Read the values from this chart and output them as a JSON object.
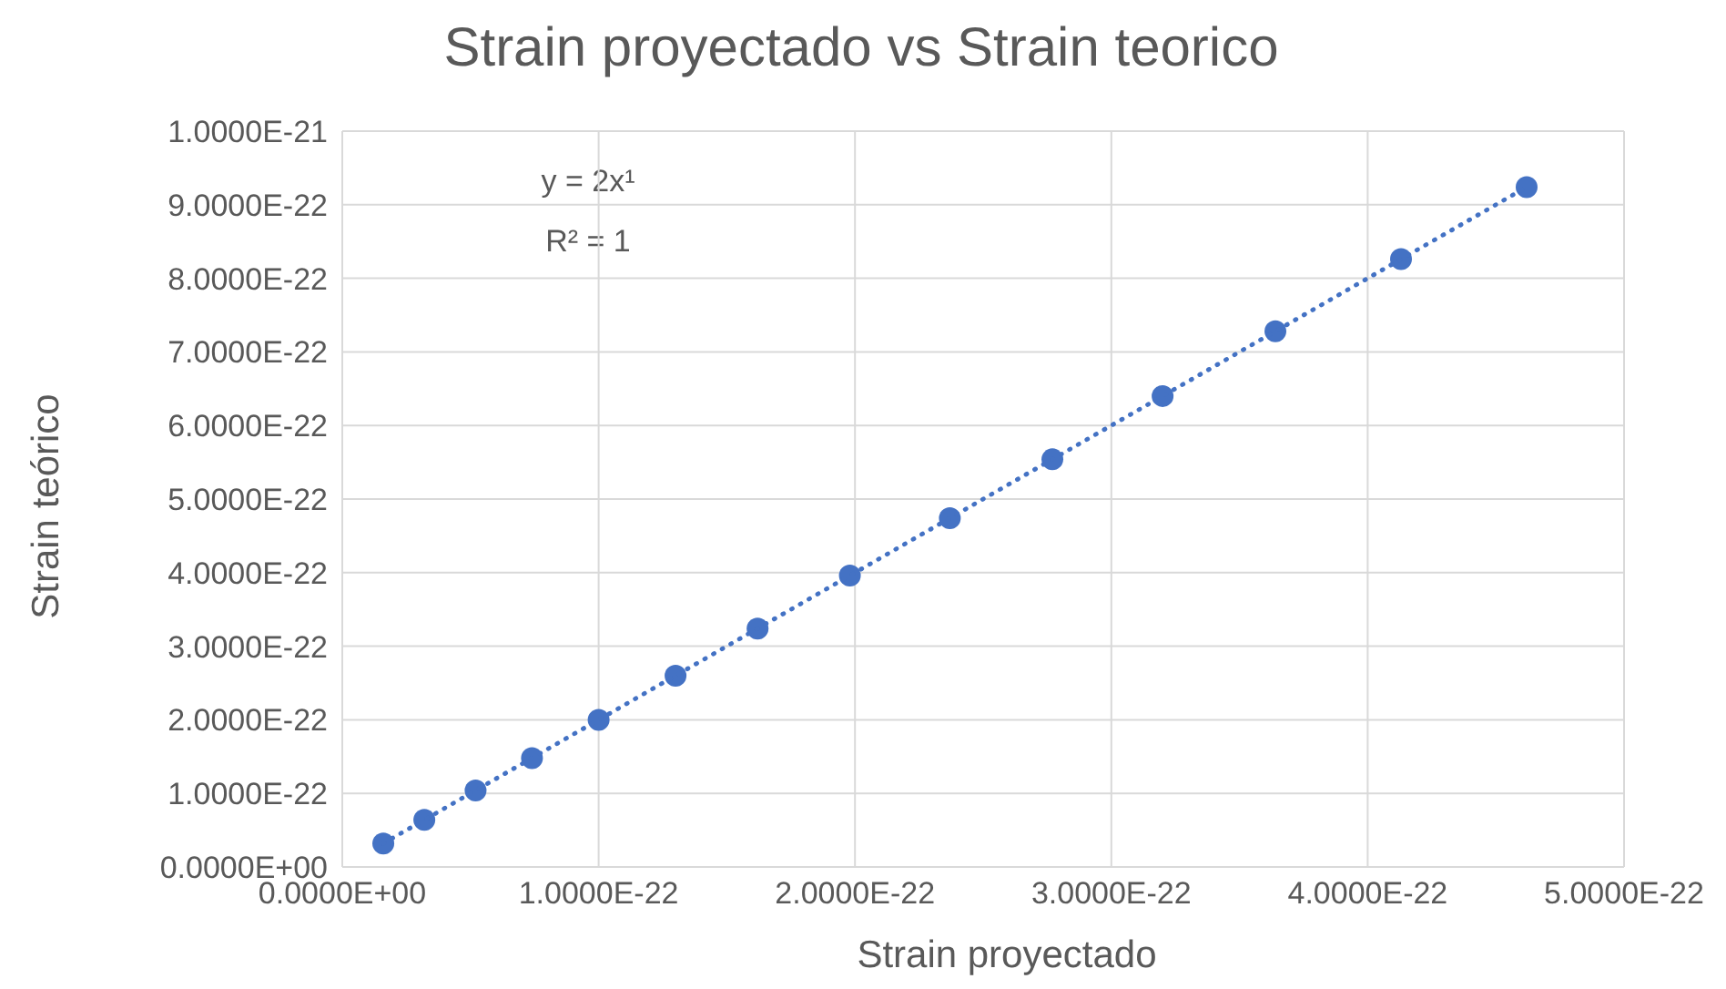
{
  "chart_data": {
    "type": "scatter",
    "title": "Strain proyectado vs Strain teorico",
    "xlabel": "Strain proyectado",
    "ylabel": "Strain teórico",
    "series": [
      {
        "color": "#4472c4",
        "marker": "circle",
        "x": [
          1.6e-23,
          3.2e-23,
          5.2e-23,
          7.4e-23,
          1e-22,
          1.3e-22,
          1.62e-22,
          1.98e-22,
          2.37e-22,
          2.77e-22,
          3.2e-22,
          3.64e-22,
          4.13e-22,
          4.62e-22
        ],
        "values": [
          3.2e-23,
          6.4e-23,
          1.04e-22,
          1.48e-22,
          2e-22,
          2.6e-22,
          3.24e-22,
          3.96e-22,
          4.74e-22,
          5.54e-22,
          6.4e-22,
          7.28e-22,
          8.26e-22,
          9.24e-22
        ]
      },
      {
        "type": "line",
        "color": "#4472c4",
        "line_style": "dotted",
        "marker": "none",
        "x": [
          1.6e-23,
          4.62e-22
        ],
        "values": [
          3.2e-23,
          9.24e-22
        ]
      }
    ],
    "xlim": [
      0,
      5e-22
    ],
    "xticks": [
      {
        "value": 0,
        "label": "0.0000E+00"
      },
      {
        "value": 1e-22,
        "label": "1.0000E-22"
      },
      {
        "value": 2e-22,
        "label": "2.0000E-22"
      },
      {
        "value": 3e-22,
        "label": "3.0000E-22"
      },
      {
        "value": 4e-22,
        "label": "4.0000E-22"
      },
      {
        "value": 5e-22,
        "label": "5.0000E-22"
      }
    ],
    "ylim": [
      0,
      1e-21
    ],
    "yticks": [
      {
        "value": 0,
        "label": "0.0000E+00"
      },
      {
        "value": 1e-22,
        "label": "1.0000E-22"
      },
      {
        "value": 2e-22,
        "label": "2.0000E-22"
      },
      {
        "value": 3e-22,
        "label": "3.0000E-22"
      },
      {
        "value": 4e-22,
        "label": "4.0000E-22"
      },
      {
        "value": 5e-22,
        "label": "5.0000E-22"
      },
      {
        "value": 6e-22,
        "label": "6.0000E-22"
      },
      {
        "value": 7e-22,
        "label": "7.0000E-22"
      },
      {
        "value": 8e-22,
        "label": "8.0000E-22"
      },
      {
        "value": 9e-22,
        "label": "9.0000E-22"
      },
      {
        "value": 1e-21,
        "label": "1.0000E-21"
      }
    ],
    "grid": true,
    "annotations": [
      "y = 2x¹",
      "R² = 1"
    ]
  }
}
